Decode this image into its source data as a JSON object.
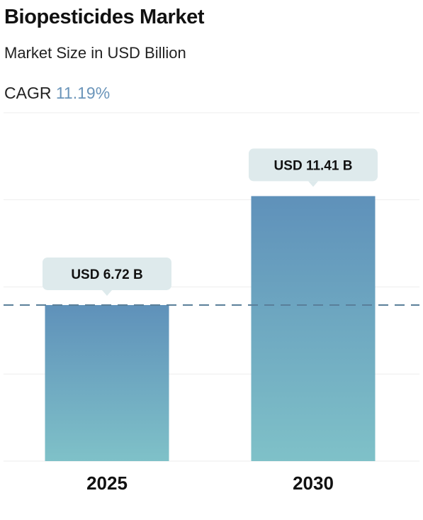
{
  "header": {
    "title": "Biopesticides Market",
    "subtitle": "Market Size in USD Billion",
    "cagr_label": "CAGR",
    "cagr_value": "11.19%"
  },
  "colors": {
    "bar_top": "#5f91ba",
    "bar_bottom": "#7fc1c8",
    "label_bg": "#deeaec",
    "dashed_line": "#5a7f99",
    "grid": "#eeeeee",
    "cagr_accent": "#6b95ba"
  },
  "chart_data": {
    "type": "bar",
    "categories": [
      "2025",
      "2030"
    ],
    "values": [
      6.72,
      11.41
    ],
    "data_labels": [
      "USD 6.72 B",
      "USD 11.41 B"
    ],
    "reference_line": 6.72,
    "reference_line_style": "dashed",
    "ylim": [
      0,
      15
    ],
    "grid": true,
    "xlabel": "",
    "ylabel": ""
  }
}
